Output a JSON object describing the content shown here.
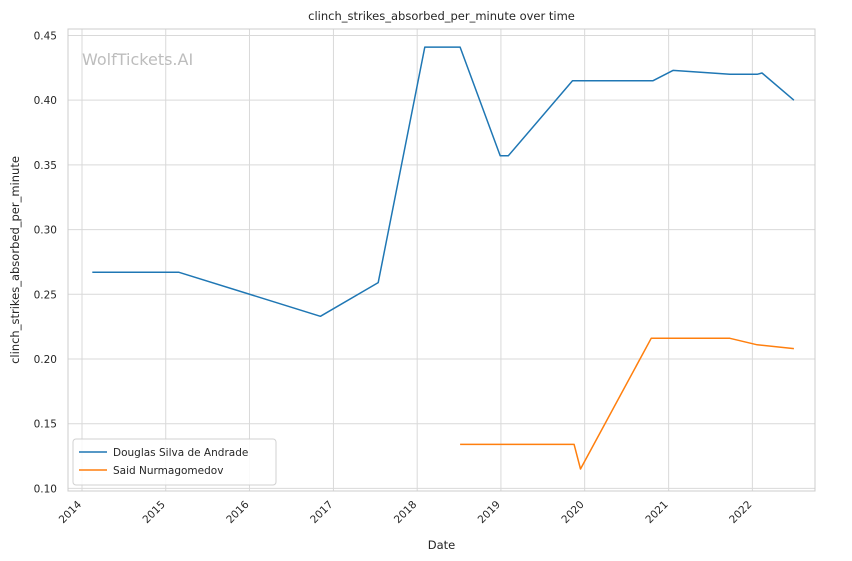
{
  "chart_data": {
    "type": "line",
    "title": "clinch_strikes_absorbed_per_minute over time",
    "xlabel": "Date",
    "ylabel": "clinch_strikes_absorbed_per_minute",
    "watermark": "WolfTickets.AI",
    "xlim": [
      "2013-11-01",
      "2022-10-01"
    ],
    "ylim": [
      0.098,
      0.455
    ],
    "x_ticks": [
      "2014",
      "2015",
      "2016",
      "2017",
      "2018",
      "2019",
      "2020",
      "2021",
      "2022"
    ],
    "y_ticks": [
      0.1,
      0.15,
      0.2,
      0.25,
      0.3,
      0.35,
      0.4,
      0.45
    ],
    "grid": true,
    "legend_position": "lower-left",
    "series": [
      {
        "name": "Douglas Silva de Andrade",
        "color": "#1f77b4",
        "points": [
          {
            "x": "2014-02-15",
            "y": 0.267
          },
          {
            "x": "2015-02-28",
            "y": 0.267
          },
          {
            "x": "2016-11-05",
            "y": 0.233
          },
          {
            "x": "2017-07-15",
            "y": 0.259
          },
          {
            "x": "2018-02-03",
            "y": 0.441
          },
          {
            "x": "2018-07-07",
            "y": 0.441
          },
          {
            "x": "2018-12-29",
            "y": 0.357
          },
          {
            "x": "2019-02-02",
            "y": 0.357
          },
          {
            "x": "2019-11-09",
            "y": 0.415
          },
          {
            "x": "2020-10-24",
            "y": 0.415
          },
          {
            "x": "2021-01-20",
            "y": 0.423
          },
          {
            "x": "2021-09-25",
            "y": 0.42
          },
          {
            "x": "2022-01-22",
            "y": 0.42
          },
          {
            "x": "2022-02-12",
            "y": 0.421
          },
          {
            "x": "2022-07-01",
            "y": 0.4
          }
        ]
      },
      {
        "name": "Said Nurmagomedov",
        "color": "#ff7f0e",
        "points": [
          {
            "x": "2018-07-07",
            "y": 0.134
          },
          {
            "x": "2019-11-16",
            "y": 0.134
          },
          {
            "x": "2019-12-14",
            "y": 0.115
          },
          {
            "x": "2020-10-17",
            "y": 0.216
          },
          {
            "x": "2021-09-25",
            "y": 0.216
          },
          {
            "x": "2022-01-22",
            "y": 0.211
          },
          {
            "x": "2022-07-01",
            "y": 0.208
          }
        ]
      }
    ]
  }
}
